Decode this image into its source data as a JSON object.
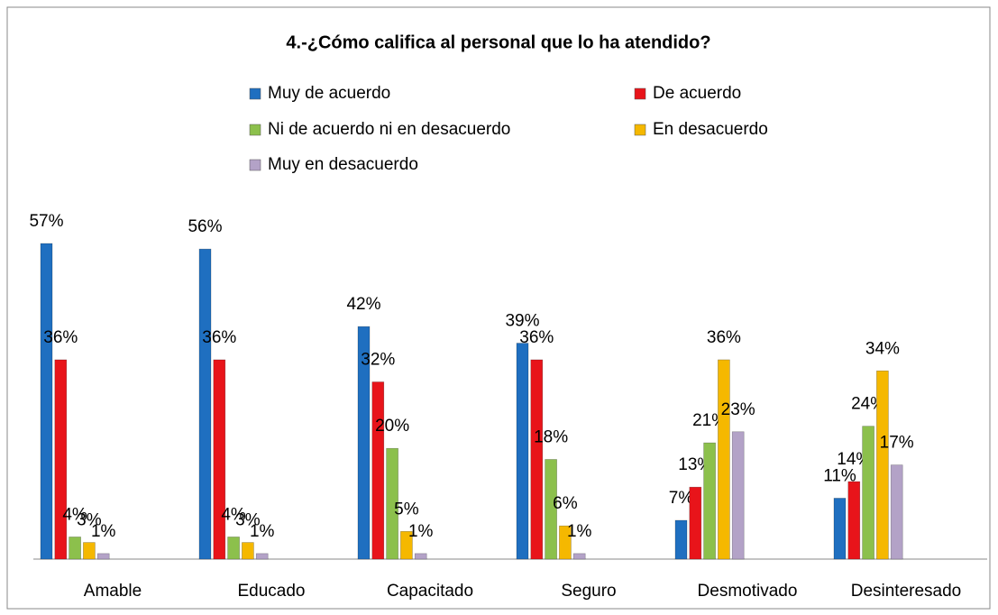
{
  "chart_data": {
    "type": "bar",
    "title": "4.-¿Cómo califica al personal que lo ha atendido?",
    "categories": [
      "Amable",
      "Educado",
      "Capacitado",
      "Seguro",
      "Desmotivado",
      "Desinteresado"
    ],
    "series": [
      {
        "name": "Muy de acuerdo",
        "color": "#1f6fc0",
        "values": [
          57,
          56,
          42,
          39,
          7,
          11
        ],
        "value_labels": [
          "57%",
          "56%",
          "42%",
          "39%",
          "7%",
          "11%"
        ]
      },
      {
        "name": "De acuerdo",
        "color": "#e8141a",
        "values": [
          36,
          36,
          32,
          36,
          13,
          14
        ],
        "value_labels": [
          "36%",
          "36%",
          "32%",
          "36%",
          "13%",
          "14%"
        ]
      },
      {
        "name": "Ni de acuerdo ni en desacuerdo",
        "color": "#8cc04c",
        "values": [
          4,
          4,
          20,
          18,
          21,
          24
        ],
        "value_labels": [
          "4%",
          "4%",
          "20%",
          "18%",
          "21%",
          "24%"
        ]
      },
      {
        "name": "En desacuerdo",
        "color": "#f5b800",
        "values": [
          3,
          3,
          5,
          6,
          36,
          34
        ],
        "value_labels": [
          "3%",
          "3%",
          "5%",
          "6%",
          "36%",
          "34%"
        ]
      },
      {
        "name": "Muy en desacuerdo",
        "color": "#b3a2c7",
        "values": [
          1,
          1,
          1,
          1,
          23,
          17
        ],
        "value_labels": [
          "1%",
          "1%",
          "1%",
          "1%",
          "23%",
          "17%"
        ]
      }
    ]
  }
}
